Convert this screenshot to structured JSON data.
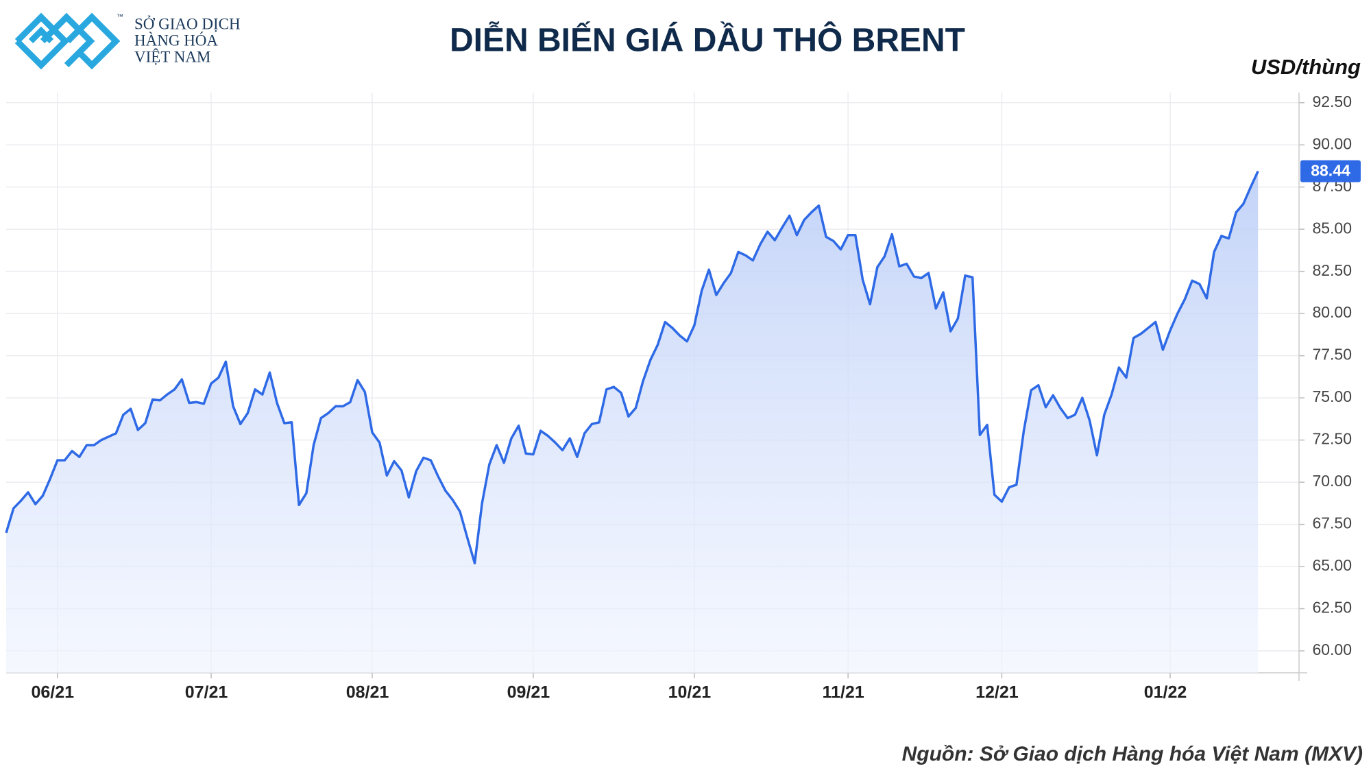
{
  "logo": {
    "line1": "SỞ GIAO DỊCH",
    "line2": "HÀNG HÓA",
    "line3": "VIỆT NAM",
    "tm": "™"
  },
  "chart_data": {
    "type": "area",
    "title": "DIỄN BIẾN GIÁ DẦU THÔ BRENT",
    "y_label": "USD/thùng",
    "source": "Nguồn: Sở Giao dịch Hàng hóa Việt Nam (MXV)",
    "current_label": "88.44",
    "color": "#2f6ae6",
    "grid": true,
    "values": [
      67.0,
      68.45,
      68.9,
      69.4,
      68.7,
      69.2,
      70.2,
      71.3,
      71.3,
      71.85,
      71.5,
      72.2,
      72.2,
      72.5,
      72.7,
      72.9,
      74.0,
      74.35,
      73.1,
      73.5,
      74.9,
      74.85,
      75.2,
      75.5,
      76.1,
      74.7,
      74.75,
      74.65,
      75.85,
      76.2,
      77.15,
      74.5,
      73.45,
      74.1,
      75.5,
      75.2,
      76.5,
      74.7,
      73.5,
      73.55,
      68.65,
      69.35,
      72.2,
      73.8,
      74.1,
      74.5,
      74.5,
      74.75,
      76.05,
      75.35,
      72.95,
      72.35,
      70.4,
      71.25,
      70.7,
      69.1,
      70.65,
      71.45,
      71.3,
      70.35,
      69.5,
      68.95,
      68.25,
      66.7,
      65.2,
      68.75,
      71.05,
      72.2,
      71.15,
      72.6,
      73.35,
      71.7,
      71.65,
      73.05,
      72.75,
      72.35,
      71.9,
      72.6,
      71.5,
      72.9,
      73.45,
      73.55,
      75.5,
      75.65,
      75.3,
      73.9,
      74.4,
      76.0,
      77.25,
      78.15,
      79.5,
      79.15,
      78.7,
      78.35,
      79.3,
      81.35,
      82.6,
      81.1,
      81.8,
      82.4,
      83.65,
      83.45,
      83.15,
      84.1,
      84.85,
      84.35,
      85.1,
      85.8,
      84.65,
      85.55,
      86.0,
      86.4,
      84.55,
      84.3,
      83.8,
      84.65,
      84.65,
      82.0,
      80.55,
      82.75,
      83.4,
      84.7,
      82.8,
      82.95,
      82.2,
      82.1,
      82.4,
      80.3,
      81.25,
      78.95,
      79.7,
      82.25,
      82.15,
      72.8,
      73.4,
      69.25,
      68.85,
      69.7,
      69.85,
      73.05,
      75.45,
      75.75,
      74.45,
      75.15,
      74.4,
      73.8,
      74.0,
      75.0,
      73.65,
      71.6,
      74.0,
      75.2,
      76.8,
      76.2,
      78.55,
      78.8,
      79.15,
      79.5,
      77.85,
      79.0,
      80.0,
      80.85,
      81.95,
      81.75,
      80.9,
      83.65,
      84.6,
      84.45,
      86.0,
      86.5,
      87.5,
      88.44
    ],
    "xlim": [
      0,
      176.6
    ],
    "xticks": [
      {
        "value": 7,
        "label": "06/21"
      },
      {
        "value": 28,
        "label": "07/21"
      },
      {
        "value": 50,
        "label": "08/21"
      },
      {
        "value": 72,
        "label": "09/21"
      },
      {
        "value": 94,
        "label": "10/21"
      },
      {
        "value": 115,
        "label": "11/21"
      },
      {
        "value": 136,
        "label": "12/21"
      },
      {
        "value": 159,
        "label": "01/22"
      }
    ],
    "ylim": [
      58.7,
      93.1
    ],
    "yticks": [
      {
        "value": 60,
        "label": "60.00"
      },
      {
        "value": 62.5,
        "label": "62.50"
      },
      {
        "value": 65,
        "label": "65.00"
      },
      {
        "value": 67.5,
        "label": "67.50"
      },
      {
        "value": 70,
        "label": "70.00"
      },
      {
        "value": 72.5,
        "label": "72.50"
      },
      {
        "value": 75,
        "label": "75.00"
      },
      {
        "value": 77.5,
        "label": "77.50"
      },
      {
        "value": 80,
        "label": "80.00"
      },
      {
        "value": 82.5,
        "label": "82.50"
      },
      {
        "value": 85,
        "label": "85.00"
      },
      {
        "value": 87.5,
        "label": "87.50"
      },
      {
        "value": 90,
        "label": "90.00"
      },
      {
        "value": 92.5,
        "label": "92.50"
      }
    ]
  }
}
